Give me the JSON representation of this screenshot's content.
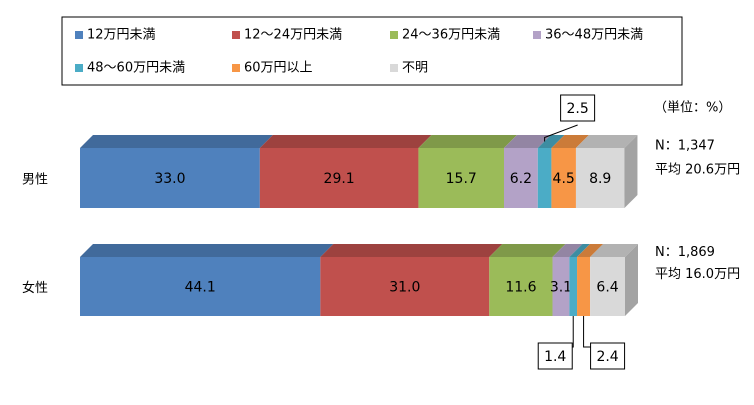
{
  "chart_data": {
    "type": "stacked-bar-3d",
    "categories": [
      "男性",
      "女性"
    ],
    "xlim": [
      0,
      100
    ],
    "unit_note": "（単位：%）",
    "notes": [
      [
        "N：1,347",
        "平均 20.6万円"
      ],
      [
        "N：1,869",
        "平均 16.0万円"
      ]
    ],
    "series": [
      {
        "name": "12万円未満",
        "color": "#4f81bd",
        "values": [
          33.0,
          44.1
        ],
        "value_labels": [
          "33.0",
          "44.1"
        ]
      },
      {
        "name": "12～24万円未満",
        "color": "#c0504d",
        "values": [
          29.1,
          31.0
        ],
        "value_labels": [
          "29.1",
          "31.0"
        ]
      },
      {
        "name": "24～36万円未満",
        "color": "#9bbb59",
        "values": [
          15.7,
          11.6
        ],
        "value_labels": [
          "15.7",
          "11.6"
        ]
      },
      {
        "name": "36～48万円未満",
        "color": "#b3a2c7",
        "values": [
          6.2,
          3.1
        ],
        "value_labels": [
          "6.2",
          "3.1"
        ]
      },
      {
        "name": "48～60万円未満",
        "color": "#4bacc6",
        "values": [
          2.5,
          1.4
        ],
        "value_labels": [
          "2.5",
          "1.4"
        ]
      },
      {
        "name": "60万円以上",
        "color": "#f79646",
        "values": [
          4.5,
          2.4
        ],
        "value_labels": [
          "4.5",
          "2.4"
        ]
      },
      {
        "name": "不明",
        "color": "#d9d9d9",
        "values": [
          8.9,
          6.4
        ],
        "value_labels": [
          "8.9",
          "6.4"
        ]
      }
    ]
  }
}
